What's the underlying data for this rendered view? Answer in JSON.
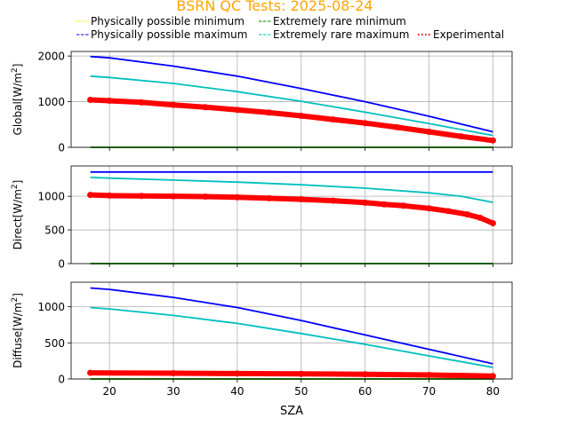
{
  "title": "BSRN QC Tests: 2025-08-24",
  "title_color": "#ffa500",
  "legend": {
    "placement": "top, above plots, 3 columns",
    "entries": [
      {
        "label": "Physically possible minimum",
        "color": "#ffff00",
        "style": "dashed"
      },
      {
        "label": "Extremely rare minimum",
        "color": "#008000",
        "style": "dashed"
      },
      {
        "label": "Physically possible maximum",
        "color": "#0000ff",
        "style": "dashed"
      },
      {
        "label": "Extremely rare maximum",
        "color": "#00bfbf",
        "style": "dashed"
      },
      {
        "label": "Experimental",
        "color": "#ff0000",
        "style": "dotted"
      }
    ]
  },
  "chart_data": [
    {
      "type": "line",
      "ylabel": "Global",
      "ylabel_unit_base": "[W/m",
      "ylabel_unit_sup": "2",
      "ylabel_unit_end": "]",
      "xlim": [
        14,
        83
      ],
      "ylim": [
        0,
        2100
      ],
      "yticks": [
        0,
        1000,
        2000
      ],
      "xticks": [
        20,
        30,
        40,
        50,
        60,
        70,
        80
      ],
      "show_xticklabels": false,
      "grid": true,
      "series": [
        {
          "name": "Physically possible minimum",
          "color": "#ffff00",
          "x": [
            17,
            80
          ],
          "y": [
            0,
            0
          ]
        },
        {
          "name": "Extremely rare minimum",
          "color": "#008000",
          "x": [
            17,
            80
          ],
          "y": [
            0,
            0
          ]
        },
        {
          "name": "Physically possible maximum",
          "color": "#0000ff",
          "x": [
            17,
            20,
            30,
            40,
            50,
            60,
            70,
            80
          ],
          "y": [
            1990,
            1960,
            1780,
            1560,
            1290,
            1000,
            680,
            340
          ]
        },
        {
          "name": "Extremely rare maximum",
          "color": "#00bfbf",
          "x": [
            17,
            20,
            30,
            40,
            50,
            60,
            70,
            80
          ],
          "y": [
            1560,
            1530,
            1400,
            1220,
            1010,
            770,
            520,
            260
          ]
        },
        {
          "name": "Experimental",
          "color": "#ff0000",
          "marker": true,
          "x": [
            17,
            20,
            25,
            30,
            35,
            40,
            45,
            50,
            55,
            60,
            65,
            70,
            75,
            80
          ],
          "y": [
            1040,
            1020,
            985,
            930,
            880,
            820,
            760,
            690,
            610,
            530,
            440,
            340,
            240,
            150
          ]
        }
      ]
    },
    {
      "type": "line",
      "ylabel": "Direct",
      "ylabel_unit_base": "[W/m",
      "ylabel_unit_sup": "2",
      "ylabel_unit_end": "]",
      "xlim": [
        14,
        83
      ],
      "ylim": [
        0,
        1450
      ],
      "yticks": [
        0,
        500,
        1000
      ],
      "xticks": [
        20,
        30,
        40,
        50,
        60,
        70,
        80
      ],
      "show_xticklabels": false,
      "grid": true,
      "series": [
        {
          "name": "Physically possible minimum",
          "color": "#ffff00",
          "x": [
            17,
            80
          ],
          "y": [
            0,
            0
          ]
        },
        {
          "name": "Extremely rare minimum",
          "color": "#008000",
          "x": [
            17,
            80
          ],
          "y": [
            0,
            0
          ]
        },
        {
          "name": "Physically possible maximum",
          "color": "#0000ff",
          "x": [
            17,
            80
          ],
          "y": [
            1360,
            1360
          ]
        },
        {
          "name": "Extremely rare maximum",
          "color": "#00bfbf",
          "x": [
            17,
            20,
            30,
            40,
            50,
            60,
            70,
            75,
            80
          ],
          "y": [
            1280,
            1270,
            1240,
            1210,
            1170,
            1120,
            1050,
            1000,
            910
          ]
        },
        {
          "name": "Experimental",
          "color": "#ff0000",
          "marker": true,
          "x": [
            17,
            20,
            25,
            30,
            35,
            40,
            45,
            50,
            55,
            60,
            63,
            66,
            70,
            73,
            76,
            78,
            80
          ],
          "y": [
            1020,
            1010,
            1005,
            1000,
            995,
            985,
            970,
            955,
            935,
            905,
            880,
            860,
            820,
            780,
            730,
            680,
            600
          ]
        }
      ]
    },
    {
      "type": "line",
      "ylabel": "Diffuse",
      "ylabel_unit_base": "[W/m",
      "ylabel_unit_sup": "2",
      "ylabel_unit_end": "]",
      "xlabel": "SZA",
      "xlim": [
        14,
        83
      ],
      "ylim": [
        0,
        1340
      ],
      "yticks": [
        0,
        500,
        1000
      ],
      "xticks": [
        20,
        30,
        40,
        50,
        60,
        70,
        80
      ],
      "show_xticklabels": true,
      "grid": true,
      "series": [
        {
          "name": "Physically possible minimum",
          "color": "#ffff00",
          "x": [
            17,
            80
          ],
          "y": [
            0,
            0
          ]
        },
        {
          "name": "Extremely rare minimum",
          "color": "#008000",
          "x": [
            17,
            80
          ],
          "y": [
            0,
            0
          ]
        },
        {
          "name": "Physically possible maximum",
          "color": "#0000ff",
          "x": [
            17,
            20,
            30,
            40,
            50,
            60,
            70,
            80
          ],
          "y": [
            1260,
            1240,
            1130,
            990,
            810,
            610,
            410,
            210
          ]
        },
        {
          "name": "Extremely rare maximum",
          "color": "#00bfbf",
          "x": [
            17,
            20,
            30,
            40,
            50,
            60,
            70,
            80
          ],
          "y": [
            990,
            970,
            880,
            770,
            630,
            480,
            320,
            160
          ]
        },
        {
          "name": "Experimental",
          "color": "#ff0000",
          "marker": true,
          "x": [
            17,
            30,
            40,
            50,
            60,
            70,
            80
          ],
          "y": [
            85,
            80,
            75,
            70,
            65,
            55,
            40
          ]
        }
      ]
    }
  ]
}
